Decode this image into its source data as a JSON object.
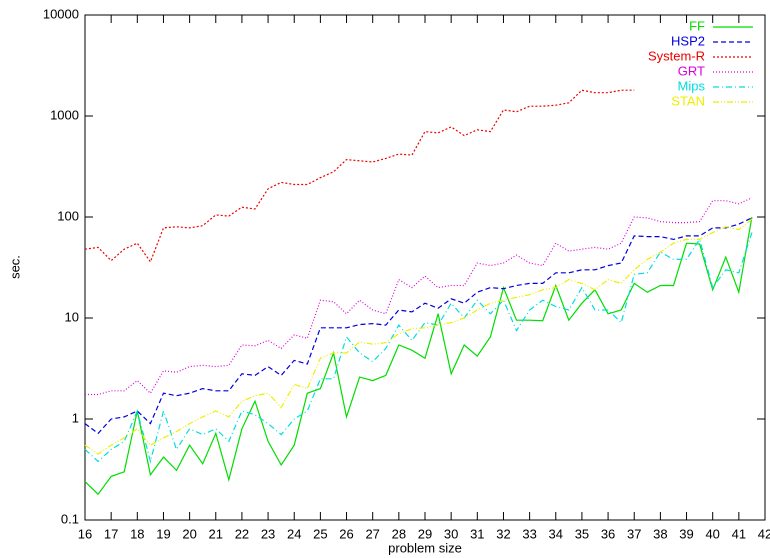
{
  "chart_data": {
    "type": "line",
    "xlabel": "problem size",
    "ylabel": "sec.",
    "log_y": true,
    "legend": "top-right",
    "xlim": [
      16,
      42
    ],
    "xticks": [
      16,
      17,
      18,
      19,
      20,
      21,
      22,
      23,
      24,
      25,
      26,
      27,
      28,
      29,
      30,
      31,
      32,
      33,
      34,
      35,
      36,
      37,
      38,
      39,
      40,
      41,
      42
    ],
    "ylim": [
      0.1,
      10000
    ],
    "yticks": [
      0.1,
      1,
      10,
      100,
      1000,
      10000
    ],
    "x": [
      16,
      16.5,
      17,
      17.5,
      18,
      18.5,
      19,
      19.5,
      20,
      20.5,
      21,
      21.5,
      22,
      22.5,
      23,
      23.5,
      24,
      24.5,
      25,
      25.5,
      26,
      26.5,
      27,
      27.5,
      28,
      28.5,
      29,
      29.5,
      30,
      30.5,
      31,
      31.5,
      32,
      32.5,
      33,
      33.5,
      34,
      34.5,
      35,
      35.5,
      36,
      36.5,
      37,
      37.5,
      38,
      38.5,
      39,
      39.5,
      40,
      40.5,
      41,
      41.5
    ],
    "series": [
      {
        "name": "FF",
        "color": "#00dd00",
        "dash": "none",
        "values": [
          0.24,
          0.18,
          0.27,
          0.3,
          1.2,
          0.28,
          0.42,
          0.31,
          0.55,
          0.36,
          0.72,
          0.25,
          0.8,
          1.5,
          0.6,
          0.35,
          0.55,
          1.8,
          2,
          4.5,
          1.05,
          2.6,
          2.4,
          2.7,
          5.4,
          4.8,
          4,
          11,
          2.8,
          5.4,
          4.2,
          6.5,
          20,
          9.5,
          9.5,
          9.4,
          21,
          9.5,
          14,
          19,
          11,
          12,
          22,
          18,
          21,
          21,
          55,
          54,
          19,
          40,
          18,
          100
        ]
      },
      {
        "name": "HSP2",
        "color": "#0000dd",
        "dash": "5,3",
        "values": [
          0.9,
          0.72,
          1,
          1.05,
          1.2,
          0.9,
          1.8,
          1.7,
          1.8,
          2,
          1.9,
          1.9,
          2.8,
          2.7,
          3.3,
          2.7,
          3.8,
          3.5,
          8,
          8,
          8,
          8.6,
          8.8,
          8.5,
          12,
          11.5,
          14,
          12.5,
          15.5,
          14,
          18,
          20,
          19.5,
          21,
          22,
          22,
          28,
          28,
          30,
          30,
          33,
          35,
          65,
          64,
          64,
          60,
          65,
          65,
          78,
          78,
          85,
          98
        ]
      },
      {
        "name": "System-R",
        "color": "#ee0000",
        "dash": "2,2",
        "values": [
          48,
          50,
          37,
          48,
          55,
          36,
          78,
          80,
          78,
          82,
          105,
          102,
          125,
          120,
          190,
          220,
          210,
          210,
          245,
          280,
          370,
          360,
          350,
          380,
          420,
          410,
          700,
          680,
          780,
          640,
          730,
          700,
          1150,
          1100,
          1250,
          1250,
          1280,
          1350,
          1800,
          1700,
          1700,
          1800,
          1800,
          null,
          null,
          null,
          null,
          null,
          null,
          null,
          null,
          null
        ]
      },
      {
        "name": "GRT",
        "color": "#dd00dd",
        "dash": "1,2",
        "values": [
          1.75,
          1.75,
          1.9,
          1.9,
          2.4,
          1.8,
          3,
          2.9,
          3.3,
          3.4,
          3.3,
          3.4,
          5.4,
          5.3,
          6,
          5,
          6.8,
          6.3,
          15,
          14.5,
          11,
          15,
          12,
          11,
          24,
          20,
          26,
          20,
          21,
          21,
          35,
          33,
          35,
          42,
          35,
          33,
          55,
          46,
          48,
          50,
          48,
          55,
          100,
          98,
          90,
          88,
          88,
          90,
          145,
          145,
          135,
          155
        ]
      },
      {
        "name": "Mips",
        "color": "#00dddd",
        "dash": "6,3,1,3",
        "values": [
          0.5,
          0.38,
          0.5,
          0.6,
          1.2,
          0.38,
          1.2,
          0.5,
          0.8,
          0.7,
          0.8,
          0.6,
          1.2,
          1.1,
          0.9,
          0.7,
          1,
          1.2,
          2.5,
          2.5,
          6.5,
          4.5,
          3.7,
          5,
          8.5,
          6,
          9,
          8.5,
          14,
          10,
          15,
          11,
          15,
          7.5,
          12,
          15,
          13,
          12,
          20,
          12,
          12,
          9,
          27,
          28,
          45,
          38,
          38,
          60,
          20,
          30,
          28,
          70
        ]
      },
      {
        "name": "STAN",
        "color": "#eeee00",
        "dash": "6,2,1,2,1,2",
        "values": [
          0.55,
          0.45,
          0.55,
          0.65,
          0.8,
          0.55,
          0.65,
          0.75,
          0.9,
          1.05,
          1.2,
          1.05,
          1.5,
          1.7,
          1.8,
          1.3,
          2.2,
          2,
          4,
          4.5,
          4.5,
          5.8,
          5.5,
          5.7,
          7,
          7.8,
          8,
          8.5,
          9,
          10,
          12,
          14,
          15,
          16,
          17,
          19,
          20,
          24,
          22,
          19,
          24,
          22,
          30,
          38,
          45,
          55,
          60,
          60,
          70,
          80,
          75,
          95
        ]
      }
    ]
  }
}
